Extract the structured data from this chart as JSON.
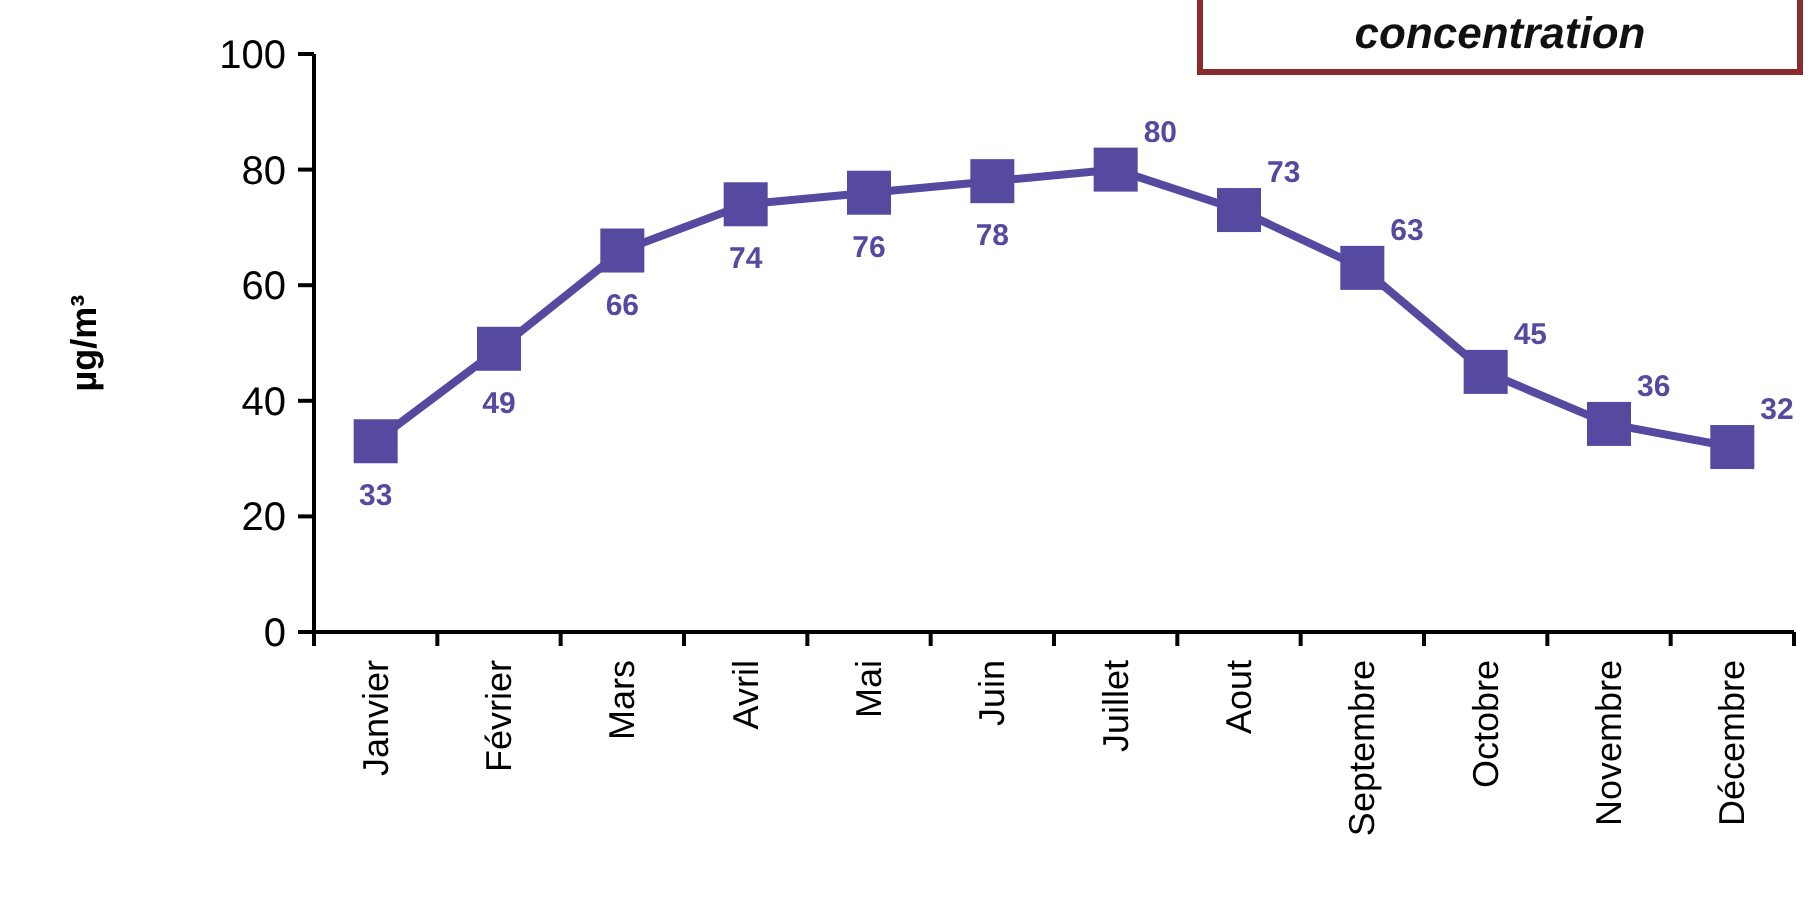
{
  "chart_data": {
    "type": "line",
    "title": "concentration",
    "ylabel": "µg/m³",
    "categories": [
      "Janvier",
      "Février",
      "Mars",
      "Avril",
      "Mai",
      "Juin",
      "Juillet",
      "Aout",
      "Septembre",
      "Octobre",
      "Novembre",
      "Décembre"
    ],
    "series": [
      {
        "color": "#5549a0",
        "values": [
          33,
          49,
          66,
          74,
          76,
          78,
          80,
          73,
          63,
          45,
          36,
          32
        ]
      }
    ],
    "ylim": [
      0,
      100
    ],
    "yticks": [
      0,
      20,
      40,
      60,
      80,
      100
    ],
    "grid": false,
    "marker": "square",
    "line_style": "solid",
    "data_labels": true
  }
}
